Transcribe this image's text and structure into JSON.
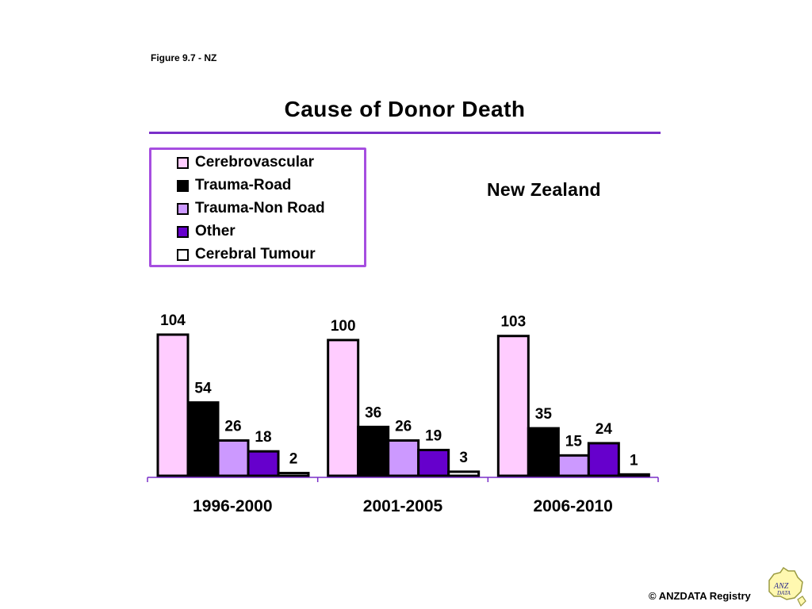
{
  "figure_label": "Figure 9.7 - NZ",
  "credit": "© ANZDATA Registry",
  "logo_text": "ANZDATA",
  "chart_data": {
    "type": "bar",
    "title": "Cause of Donor Death",
    "subtitle": "New Zealand",
    "categories": [
      "1996-2000",
      "2001-2005",
      "2006-2010"
    ],
    "series": [
      {
        "name": "Cerebrovascular",
        "color": "#ffccff",
        "values": [
          104,
          100,
          103
        ]
      },
      {
        "name": "Trauma-Road",
        "color": "#000000",
        "values": [
          54,
          36,
          35
        ]
      },
      {
        "name": "Trauma-Non Road",
        "color": "#cc99ff",
        "values": [
          26,
          26,
          15
        ]
      },
      {
        "name": "Other",
        "color": "#6600cc",
        "values": [
          18,
          19,
          24
        ]
      },
      {
        "name": "Cerebral Tumour",
        "color": "#ffffff",
        "values": [
          2,
          3,
          1
        ]
      }
    ],
    "ylim": [
      0,
      104
    ],
    "xlabel": "",
    "ylabel": "",
    "grid": false,
    "legend_position": "top-left",
    "accent_color": "#7a2fc9"
  }
}
